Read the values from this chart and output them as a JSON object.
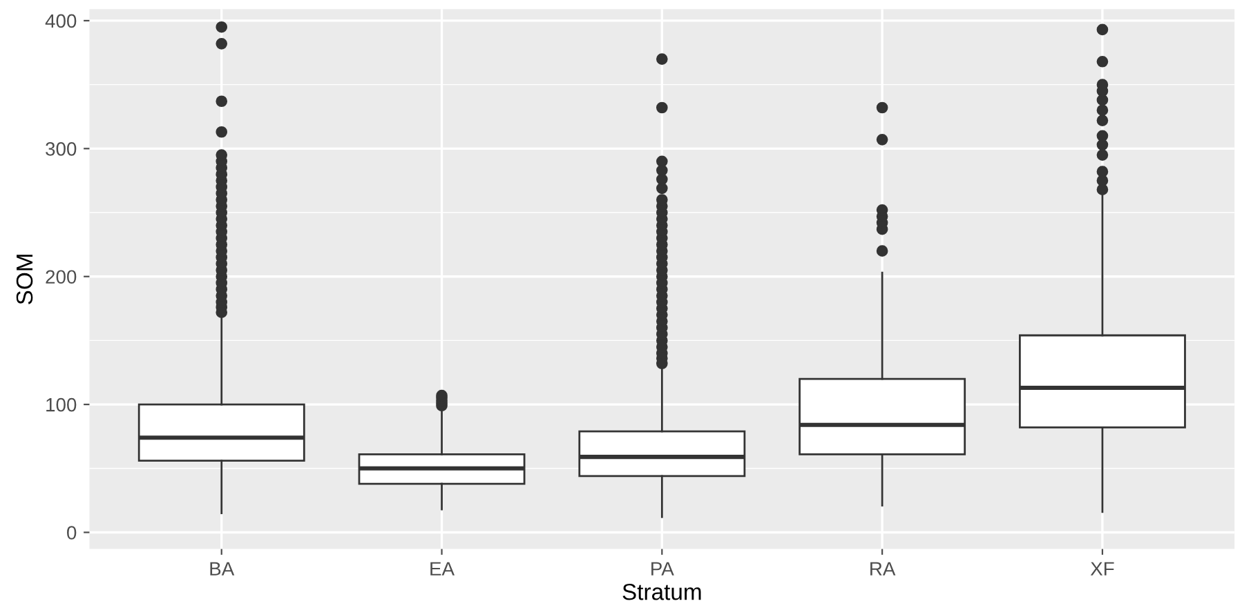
{
  "chart_data": {
    "type": "box",
    "xlabel": "Stratum",
    "ylabel": "SOM",
    "categories": [
      "BA",
      "EA",
      "PA",
      "RA",
      "XF"
    ],
    "boxes": [
      {
        "low": 15,
        "q1": 56,
        "median": 74,
        "q3": 100,
        "high": 169,
        "outliers": [
          172,
          176,
          180,
          185,
          190,
          195,
          200,
          205,
          210,
          215,
          220,
          225,
          230,
          235,
          240,
          245,
          250,
          255,
          260,
          265,
          270,
          275,
          280,
          285,
          290,
          295,
          313,
          337,
          382,
          395
        ]
      },
      {
        "low": 18,
        "q1": 38,
        "median": 50,
        "q3": 61,
        "high": 97,
        "outliers": [
          99,
          101,
          103,
          105,
          107
        ]
      },
      {
        "low": 12,
        "q1": 44,
        "median": 59,
        "q3": 79,
        "high": 129,
        "outliers": [
          132,
          136,
          140,
          145,
          150,
          155,
          160,
          165,
          170,
          175,
          180,
          185,
          190,
          195,
          200,
          205,
          210,
          215,
          220,
          225,
          230,
          235,
          240,
          245,
          250,
          255,
          260,
          269,
          276,
          283,
          290,
          332,
          370
        ]
      },
      {
        "low": 21,
        "q1": 61,
        "median": 84,
        "q3": 120,
        "high": 203,
        "outliers": [
          220,
          237,
          242,
          247,
          252,
          307,
          332
        ]
      },
      {
        "low": 16,
        "q1": 82,
        "median": 113,
        "q3": 154,
        "high": 265,
        "outliers": [
          268,
          275,
          282,
          295,
          303,
          310,
          322,
          330,
          338,
          345,
          350,
          368,
          393
        ]
      }
    ],
    "ylim": [
      -13,
      409
    ],
    "yticks": [
      0,
      100,
      200,
      300,
      400
    ],
    "grid": true
  }
}
